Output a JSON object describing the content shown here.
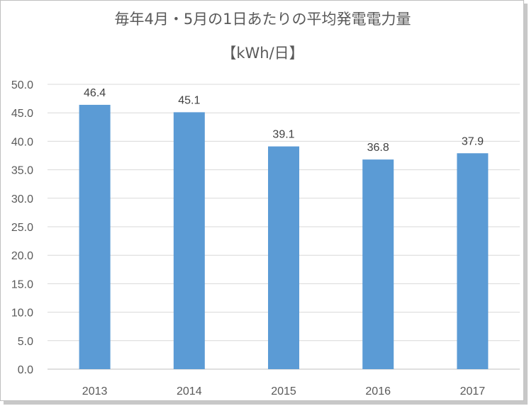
{
  "chart_data": {
    "type": "bar",
    "title": "毎年4月・5月の1日あたりの平均発電電力量",
    "subtitle": "【kWh/日】",
    "categories": [
      "2013",
      "2014",
      "2015",
      "2016",
      "2017"
    ],
    "values": [
      46.4,
      45.1,
      39.1,
      36.8,
      37.9
    ],
    "data_labels": [
      "46.4",
      "45.1",
      "39.1",
      "36.8",
      "37.9"
    ],
    "ylim": [
      0,
      50
    ],
    "yticks": [
      "0.0",
      "5.0",
      "10.0",
      "15.0",
      "20.0",
      "25.0",
      "30.0",
      "35.0",
      "40.0",
      "45.0",
      "50.0"
    ],
    "grid": true,
    "bar_color": "#5b9bd5",
    "grid_color": "#d9d9d9"
  }
}
